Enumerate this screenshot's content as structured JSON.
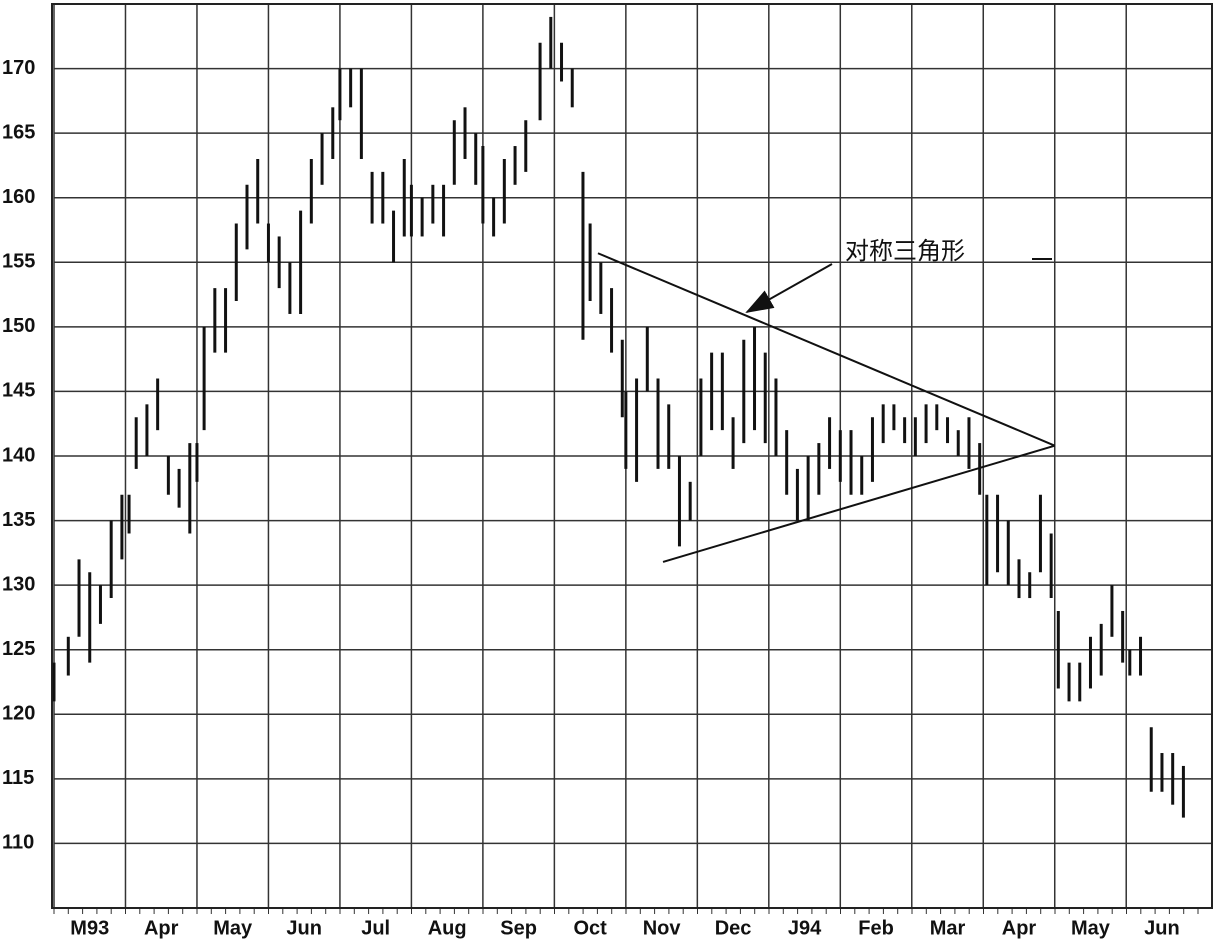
{
  "chart_data": {
    "type": "range-bar",
    "annotation": "对称三角形",
    "x": [
      0.0,
      0.2,
      0.35,
      0.5,
      0.65,
      0.8,
      0.95,
      1.05,
      1.15,
      1.3,
      1.45,
      1.6,
      1.75,
      1.9,
      2.0,
      2.1,
      2.25,
      2.4,
      2.55,
      2.7,
      2.85,
      3.0,
      3.15,
      3.3,
      3.45,
      3.6,
      3.75,
      3.9,
      4.0,
      4.15,
      4.3,
      4.45,
      4.6,
      4.75,
      4.9,
      5.0,
      5.15,
      5.3,
      5.45,
      5.6,
      5.75,
      5.9,
      6.0,
      6.15,
      6.3,
      6.45,
      6.6,
      6.8,
      6.95,
      7.1,
      7.25,
      7.4,
      7.5,
      7.65,
      7.8,
      7.95,
      8.0,
      8.15,
      8.3,
      8.45,
      8.6,
      8.75,
      8.9,
      9.05,
      9.2,
      9.35,
      9.5,
      9.65,
      9.8,
      9.95,
      10.1,
      10.25,
      10.4,
      10.55,
      10.7,
      10.85,
      11.0,
      11.15,
      11.3,
      11.45,
      11.6,
      11.75,
      11.9,
      12.05,
      12.2,
      12.35,
      12.5,
      12.65,
      12.8,
      12.95,
      13.05,
      13.2,
      13.35,
      13.5,
      13.65,
      13.8,
      13.95,
      14.05,
      14.2,
      14.35,
      14.5,
      14.65,
      14.8,
      14.95,
      15.05,
      15.2,
      15.35,
      15.5,
      15.65,
      15.8
    ],
    "high": [
      124,
      126,
      132,
      131,
      130,
      135,
      137,
      137,
      143,
      144,
      146,
      140,
      139,
      141,
      141,
      150,
      153,
      153,
      158,
      161,
      163,
      158,
      157,
      155,
      159,
      163,
      165,
      167,
      170,
      170,
      170,
      162,
      162,
      159,
      163,
      161,
      160,
      161,
      161,
      166,
      167,
      165,
      164,
      160,
      163,
      164,
      166,
      172,
      174,
      172,
      170,
      162,
      158,
      155,
      153,
      149,
      145,
      146,
      150,
      146,
      144,
      140,
      138,
      146,
      148,
      148,
      143,
      149,
      150,
      148,
      146,
      142,
      139,
      140,
      141,
      143,
      142,
      142,
      140,
      143,
      144,
      144,
      143,
      143,
      144,
      144,
      143,
      142,
      143,
      141,
      137,
      137,
      135,
      132,
      131,
      137,
      134,
      128,
      124,
      124,
      126,
      127,
      130,
      128,
      125,
      126,
      119,
      117,
      117,
      116
    ],
    "low": [
      121,
      123,
      126,
      124,
      127,
      129,
      132,
      134,
      139,
      140,
      142,
      137,
      136,
      134,
      138,
      142,
      148,
      148,
      152,
      156,
      158,
      155,
      153,
      151,
      151,
      158,
      161,
      163,
      166,
      167,
      163,
      158,
      158,
      155,
      157,
      157,
      157,
      158,
      157,
      161,
      163,
      161,
      158,
      157,
      158,
      161,
      162,
      166,
      170,
      169,
      167,
      149,
      152,
      151,
      148,
      143,
      139,
      138,
      145,
      139,
      139,
      133,
      135,
      140,
      142,
      142,
      139,
      141,
      142,
      141,
      140,
      137,
      135,
      135,
      137,
      139,
      138,
      137,
      137,
      138,
      141,
      142,
      141,
      140,
      141,
      142,
      141,
      140,
      139,
      137,
      130,
      131,
      130,
      129,
      129,
      131,
      129,
      122,
      121,
      121,
      122,
      123,
      126,
      124,
      123,
      123,
      114,
      114,
      113,
      112
    ],
    "trendlines": [
      {
        "x": [
          7.61,
          14.0
        ],
        "y": [
          155.7,
          140.8
        ]
      },
      {
        "x": [
          8.52,
          14.0
        ],
        "y": [
          131.8,
          140.8
        ]
      }
    ],
    "color": "#111111",
    "xlim": [
      0,
      16.2
    ],
    "ylim": [
      105,
      175
    ],
    "xticks": [
      {
        "value": 0.5,
        "label": "M93"
      },
      {
        "value": 1.5,
        "label": "Apr"
      },
      {
        "value": 2.5,
        "label": "May"
      },
      {
        "value": 3.5,
        "label": "Jun"
      },
      {
        "value": 4.5,
        "label": "Jul"
      },
      {
        "value": 5.5,
        "label": "Aug"
      },
      {
        "value": 6.5,
        "label": "Sep"
      },
      {
        "value": 7.5,
        "label": "Oct"
      },
      {
        "value": 8.5,
        "label": "Nov"
      },
      {
        "value": 9.5,
        "label": "Dec"
      },
      {
        "value": 10.5,
        "label": "J94"
      },
      {
        "value": 11.5,
        "label": "Feb"
      },
      {
        "value": 12.5,
        "label": "Mar"
      },
      {
        "value": 13.5,
        "label": "Apr"
      },
      {
        "value": 14.5,
        "label": "May"
      },
      {
        "value": 15.5,
        "label": "Jun"
      }
    ],
    "yticks": [
      110,
      115,
      120,
      125,
      130,
      135,
      140,
      145,
      150,
      155,
      160,
      165,
      170
    ],
    "grid": true
  }
}
